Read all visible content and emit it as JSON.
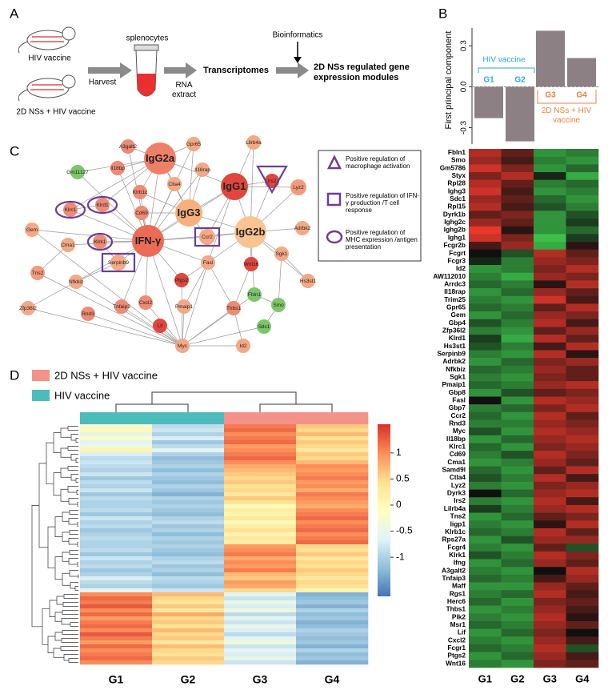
{
  "panel_labels": [
    "A",
    "B",
    "C",
    "D"
  ],
  "panel_a": {
    "mouse_labels": [
      "HIV vaccine",
      "2D NSs + HIV vaccine"
    ],
    "steps": [
      "Harvest",
      "splenocytes",
      "RNA extract",
      "Transcriptomes",
      "Bioinformatics",
      "2D NSs regulated gene expression modules"
    ]
  },
  "panel_c": {
    "nodes": [
      {
        "label": "A3galt2",
        "color": "#ef8a74"
      },
      {
        "label": "Il18bp",
        "color": "#ef8a74"
      },
      {
        "label": "IgG2a",
        "color": "#ef8068"
      },
      {
        "label": "Gpr65",
        "color": "#f4a885"
      },
      {
        "label": "Lilrb4a",
        "color": "#f4a885"
      },
      {
        "label": "Gm11127",
        "color": "#7cc66a"
      },
      {
        "label": "Il18rap",
        "color": "#f4a885"
      },
      {
        "label": "Klrb1c",
        "color": "#ef8a74"
      },
      {
        "label": "Ctla4",
        "color": "#f4a885"
      },
      {
        "label": "IgG1",
        "color": "#e0463c"
      },
      {
        "label": "Irs2",
        "color": "#e0463c"
      },
      {
        "label": "Lyz2",
        "color": "#f39a7c"
      },
      {
        "label": "Klrc1",
        "color": "#ef8a74"
      },
      {
        "label": "Klrd1",
        "color": "#ef8a74"
      },
      {
        "label": "Cd69",
        "color": "#ef8a74"
      },
      {
        "label": "IgG3",
        "color": "#f6b07d"
      },
      {
        "label": "IgG2b",
        "color": "#f9c392"
      },
      {
        "label": "Gem",
        "color": "#f4a885"
      },
      {
        "label": "Adrbk2",
        "color": "#f4a885"
      },
      {
        "label": "Ccr2",
        "color": "#f4a885"
      },
      {
        "label": "Cma1",
        "color": "#f4a885"
      },
      {
        "label": "Klrk1",
        "color": "#ef8a74"
      },
      {
        "label": "IFN-γ",
        "color": "#ec6b55"
      },
      {
        "label": "Sgk1",
        "color": "#f4a885"
      },
      {
        "label": "Serpinb9",
        "color": "#f4a885"
      },
      {
        "label": "Fasl",
        "color": "#f4a885"
      },
      {
        "label": "Wnt16",
        "color": "#e0463c"
      },
      {
        "label": "Tns2",
        "color": "#f39a7c"
      },
      {
        "label": "Nfkbiz",
        "color": "#f4a885"
      },
      {
        "label": "Ptgs2",
        "color": "#e0463c"
      },
      {
        "label": "Hs3st1",
        "color": "#f4a885"
      },
      {
        "label": "Fbln1",
        "color": "#7cc66a"
      },
      {
        "label": "Smo",
        "color": "#7cc66a"
      },
      {
        "label": "Zfp36l2",
        "color": "#f4a885"
      },
      {
        "label": "Rnd3",
        "color": "#ef8a74"
      },
      {
        "label": "Tnfaip3",
        "color": "#ef8a74"
      },
      {
        "label": "Cxcl2",
        "color": "#ef8a74"
      },
      {
        "label": "Pmaip1",
        "color": "#f4a885"
      },
      {
        "label": "Thbs1",
        "color": "#ef8a74"
      },
      {
        "label": "Lif",
        "color": "#e0463c"
      },
      {
        "label": "Sdc1",
        "color": "#7cc66a"
      },
      {
        "label": "Myc",
        "color": "#f4a885"
      },
      {
        "label": "Id2",
        "color": "#f4a885"
      }
    ],
    "legend": [
      "Positive regulation of macrophage activation",
      "Positive regulation of IFN-γ production /T cell response",
      "Positive regulation of MHC expression /antigen presentation"
    ]
  },
  "chart_data": [
    {
      "type": "bar",
      "ylabel": "First principal component",
      "categories": [
        "G1",
        "G2",
        "G3",
        "G4"
      ],
      "category_colors": [
        "#29a9d6",
        "#29a9d6",
        "#f07f3c",
        "#f07f3c"
      ],
      "values": [
        -0.23,
        -0.4,
        0.41,
        0.21
      ],
      "color": "#8c8084",
      "ylim": [
        -0.42,
        0.43
      ],
      "yticks": [
        -0.3,
        {
          "value": 0,
          "label": "0.0"
        },
        0.3
      ],
      "annotations": [
        {
          "text": "HIV vaccine",
          "color": "#29a9d6"
        },
        {
          "text": "2D NSs + HIV vaccine",
          "color": "#f07f3c"
        }
      ]
    },
    {
      "type": "heatmap",
      "categories": [
        "G1",
        "G2",
        "G3",
        "G4"
      ],
      "zlim": [
        -0.8,
        0.8
      ],
      "colors": [
        "#3cc04a",
        "#101010",
        "#e8382c"
      ],
      "rows": [
        "Fbln1",
        "Smo",
        "Gm5786",
        "Styx",
        "Rpl28",
        "Ighg3",
        "Sdc1",
        "Rpl15",
        "Dyrk1b",
        "Ighg2c",
        "Ighg2b",
        "Ighg1",
        "Fcgr2b",
        "Fcgrt",
        "Fcgr3",
        "Id2",
        "AW112010",
        "Arrdc3",
        "Il18rap",
        "Trim25",
        "Gpr65",
        "Gem",
        "Gbp4",
        "Zfp36l2",
        "Klrd1",
        "Hs3st1",
        "Serpinb9",
        "Adrbk2",
        "Nfkbiz",
        "Sgk1",
        "Pmaip1",
        "Gbp8",
        "Fasl",
        "Gbp7",
        "Ccr2",
        "Rnd3",
        "Myc",
        "Il18bp",
        "Klrc1",
        "Cd69",
        "Cma1",
        "Samd9l",
        "Ctla4",
        "Lyz2",
        "Dyrk3",
        "Irs2",
        "Lilrb4a",
        "Tns2",
        "Iigp1",
        "Klrb1c",
        "Rps27a",
        "Fcgr4",
        "Klrk1",
        "Ifng",
        "A3galt2",
        "Tnfaip3",
        "Maff",
        "Rgs1",
        "Herc6",
        "Thbs1",
        "Plk2",
        "Msr1",
        "Lif",
        "Cxcl2",
        "Fcgr1",
        "Ptgs2",
        "Wnt16"
      ],
      "values": [
        [
          0.6,
          0.3,
          -0.6,
          -0.5
        ],
        [
          0.5,
          0.2,
          -0.5,
          -0.6
        ],
        [
          0.7,
          0.4,
          -0.6,
          -0.4
        ],
        [
          0.4,
          0.6,
          -0.1,
          -0.7
        ],
        [
          0.6,
          0.3,
          -0.5,
          -0.4
        ],
        [
          0.7,
          0.2,
          -0.6,
          -0.5
        ],
        [
          0.5,
          0.3,
          -0.4,
          -0.6
        ],
        [
          0.6,
          0.2,
          -0.3,
          -0.5
        ],
        [
          0.3,
          0.4,
          -0.6,
          -0.3
        ],
        [
          0.5,
          0.3,
          -0.6,
          -0.2
        ],
        [
          0.8,
          0.1,
          -0.6,
          -0.4
        ],
        [
          0.7,
          0.4,
          -0.8,
          -0.2
        ],
        [
          0.2,
          0.5,
          -0.7,
          0.1
        ],
        [
          0.0,
          -0.3,
          0.6,
          0.3
        ],
        [
          -0.1,
          -0.5,
          0.5,
          0.4
        ],
        [
          -0.6,
          -0.5,
          0.4,
          0.6
        ],
        [
          -0.5,
          -0.7,
          0.5,
          0.4
        ],
        [
          -0.4,
          -0.5,
          0.1,
          0.6
        ],
        [
          -0.6,
          -0.4,
          0.5,
          0.3
        ],
        [
          -0.5,
          -0.6,
          0.7,
          0.2
        ],
        [
          -0.4,
          -0.5,
          0.3,
          0.6
        ],
        [
          -0.6,
          -0.4,
          0.5,
          0.4
        ],
        [
          -0.3,
          -0.5,
          0.6,
          0.2
        ],
        [
          -0.5,
          -0.6,
          0.3,
          0.5
        ],
        [
          -0.2,
          -0.7,
          0.6,
          0.3
        ],
        [
          -0.3,
          -0.5,
          0.2,
          0.6
        ],
        [
          -0.5,
          -0.6,
          0.6,
          0.1
        ],
        [
          -0.6,
          -0.4,
          0.4,
          0.5
        ],
        [
          -0.4,
          -0.5,
          0.5,
          0.3
        ],
        [
          -0.5,
          -0.6,
          0.4,
          0.3
        ],
        [
          -0.4,
          -0.5,
          0.5,
          0.6
        ],
        [
          -0.6,
          -0.3,
          0.3,
          0.4
        ],
        [
          0.0,
          -0.6,
          0.6,
          0.5
        ],
        [
          -0.5,
          -0.4,
          0.4,
          0.6
        ],
        [
          -0.4,
          -0.6,
          0.6,
          0.3
        ],
        [
          -0.5,
          -0.5,
          0.5,
          0.4
        ],
        [
          -0.3,
          -0.6,
          0.6,
          0.5
        ],
        [
          -0.6,
          -0.4,
          0.5,
          0.6
        ],
        [
          -0.4,
          -0.6,
          0.4,
          0.5
        ],
        [
          -0.5,
          -0.3,
          0.6,
          0.4
        ],
        [
          -0.6,
          -0.5,
          0.5,
          0.3
        ],
        [
          -0.4,
          -0.6,
          0.3,
          0.6
        ],
        [
          -0.3,
          -0.5,
          0.6,
          0.2
        ],
        [
          -0.5,
          -0.6,
          0.4,
          0.5
        ],
        [
          0.0,
          -0.4,
          0.5,
          0.6
        ],
        [
          -0.5,
          -0.6,
          0.6,
          0.2
        ],
        [
          -0.2,
          -0.5,
          0.5,
          0.6
        ],
        [
          -0.6,
          -0.4,
          0.3,
          0.4
        ],
        [
          -0.5,
          -0.6,
          0.1,
          0.6
        ],
        [
          -0.4,
          -0.5,
          0.6,
          0.3
        ],
        [
          -0.6,
          -0.3,
          0.5,
          0.5
        ],
        [
          -0.5,
          -0.6,
          0.3,
          -0.3
        ],
        [
          -0.3,
          -0.5,
          0.6,
          0.4
        ],
        [
          -0.6,
          -0.4,
          0.5,
          0.3
        ],
        [
          -0.5,
          -0.6,
          0.0,
          0.6
        ],
        [
          -0.4,
          -0.5,
          0.2,
          0.5
        ],
        [
          -0.6,
          -0.6,
          0.5,
          0.3
        ],
        [
          -0.5,
          -0.4,
          0.6,
          0.2
        ],
        [
          -0.4,
          -0.6,
          0.4,
          0.3
        ],
        [
          -0.6,
          -0.5,
          0.5,
          0.2
        ],
        [
          -0.5,
          -0.6,
          0.6,
          0.1
        ],
        [
          -0.4,
          -0.5,
          0.5,
          0.3
        ],
        [
          -0.6,
          -0.4,
          0.4,
          0.0
        ],
        [
          -0.5,
          -0.6,
          0.5,
          0.2
        ],
        [
          -0.4,
          -0.5,
          0.6,
          -0.3
        ],
        [
          -0.6,
          -0.4,
          0.5,
          0.2
        ],
        [
          -0.5,
          -0.6,
          0.4,
          0.3
        ]
      ]
    },
    {
      "type": "heatmap",
      "categories": [
        "G1",
        "G2",
        "G3",
        "G4"
      ],
      "column_colors": [
        "#4bbcbc",
        "#4bbcbc",
        "#f4928a",
        "#f4928a"
      ],
      "groups": [
        {
          "name": "2D NSs + HIV vaccine",
          "color": "#f4928a"
        },
        {
          "name": "HIV vaccine",
          "color": "#4bbcbc"
        }
      ],
      "zlim": [
        -1.75,
        1.55
      ],
      "zticks": [
        1,
        0.5,
        0,
        -0.5,
        -1
      ],
      "colors": [
        "#4575b4",
        "#91bfdb",
        "#e0f3f8",
        "#ffffbf",
        "#fee090",
        "#fc8d59",
        "#d73027"
      ],
      "values": [
        [
          -0.3,
          -0.9,
          1.1,
          0.6
        ],
        [
          0.0,
          -0.8,
          1.2,
          0.5
        ],
        [
          -0.5,
          -1.0,
          1.0,
          0.7
        ],
        [
          -0.2,
          -0.7,
          1.1,
          0.4
        ],
        [
          -0.6,
          -1.1,
          1.2,
          0.6
        ],
        [
          -0.4,
          -0.9,
          0.9,
          0.5
        ],
        [
          0.1,
          -0.6,
          1.0,
          0.3
        ],
        [
          -0.7,
          -1.0,
          1.1,
          0.6
        ],
        [
          -0.9,
          -1.2,
          1.2,
          0.5
        ],
        [
          -0.8,
          -1.1,
          1.0,
          0.7
        ],
        [
          -0.9,
          -1.0,
          0.8,
          1.0
        ],
        [
          -1.0,
          -1.2,
          0.7,
          0.9
        ],
        [
          -0.8,
          -1.0,
          0.6,
          1.0
        ],
        [
          -1.1,
          -1.1,
          0.5,
          1.1
        ],
        [
          -0.9,
          -1.2,
          0.6,
          0.9
        ],
        [
          -1.0,
          -1.0,
          0.4,
          1.0
        ],
        [
          -0.8,
          -1.1,
          0.5,
          0.8
        ],
        [
          -1.1,
          -1.3,
          0.3,
          1.1
        ],
        [
          -0.9,
          -1.0,
          0.6,
          1.0
        ],
        [
          -1.0,
          -1.1,
          0.4,
          0.9
        ],
        [
          -1.0,
          -1.0,
          0.0,
          0.8
        ],
        [
          -0.9,
          -1.1,
          0.2,
          1.0
        ],
        [
          -1.1,
          -1.2,
          0.1,
          1.1
        ],
        [
          -0.8,
          -1.0,
          0.3,
          1.2
        ],
        [
          -1.0,
          -0.9,
          0.0,
          1.0
        ],
        [
          -0.9,
          -1.1,
          0.2,
          1.1
        ],
        [
          -1.1,
          -1.0,
          0.4,
          1.2
        ],
        [
          -1.0,
          -1.2,
          0.1,
          1.0
        ],
        [
          -0.9,
          -1.0,
          0.3,
          1.1
        ],
        [
          -1.0,
          -1.1,
          0.2,
          1.2
        ],
        [
          -1.0,
          -1.0,
          0.9,
          0.5
        ],
        [
          -0.9,
          -1.1,
          1.0,
          0.4
        ],
        [
          -1.1,
          -1.2,
          1.1,
          0.6
        ],
        [
          -0.8,
          -1.0,
          0.8,
          0.3
        ],
        [
          -1.0,
          -0.9,
          1.0,
          0.5
        ],
        [
          -0.9,
          -1.1,
          0.9,
          0.4
        ],
        [
          -1.1,
          -1.0,
          1.1,
          0.6
        ],
        [
          -1.0,
          -1.2,
          0.7,
          0.5
        ],
        [
          -0.7,
          -0.9,
          0.6,
          0.3
        ],
        [
          -0.9,
          -1.0,
          0.9,
          0.5
        ],
        [
          -1.0,
          -1.1,
          0.8,
          0.4
        ],
        [
          -0.6,
          -0.8,
          0.5,
          0.1
        ],
        [
          1.0,
          0.7,
          -0.6,
          -1.3
        ],
        [
          1.2,
          0.5,
          -0.8,
          -1.2
        ],
        [
          1.1,
          0.4,
          -0.5,
          -1.1
        ],
        [
          1.3,
          0.6,
          -0.7,
          -1.3
        ],
        [
          1.0,
          0.3,
          -0.4,
          -1.0
        ],
        [
          1.2,
          0.8,
          -0.9,
          -1.2
        ],
        [
          0.9,
          0.5,
          -0.6,
          -1.1
        ],
        [
          1.1,
          0.6,
          -0.8,
          -1.3
        ],
        [
          1.2,
          0.4,
          -0.5,
          -1.2
        ],
        [
          1.0,
          0.7,
          -0.7,
          -1.0
        ],
        [
          1.3,
          0.5,
          -0.9,
          -1.1
        ],
        [
          1.1,
          0.6,
          -0.6,
          -1.2
        ],
        [
          0.9,
          0.3,
          -0.4,
          -1.1
        ],
        [
          1.2,
          0.7,
          -0.8,
          -1.3
        ],
        [
          1.0,
          0.5,
          -0.6,
          -1.0
        ],
        [
          1.1,
          0.4,
          -0.7,
          -1.2
        ],
        [
          1.2,
          0.6,
          -0.5,
          -1.1
        ],
        [
          1.0,
          0.5,
          -0.8,
          -1.3
        ]
      ]
    }
  ]
}
